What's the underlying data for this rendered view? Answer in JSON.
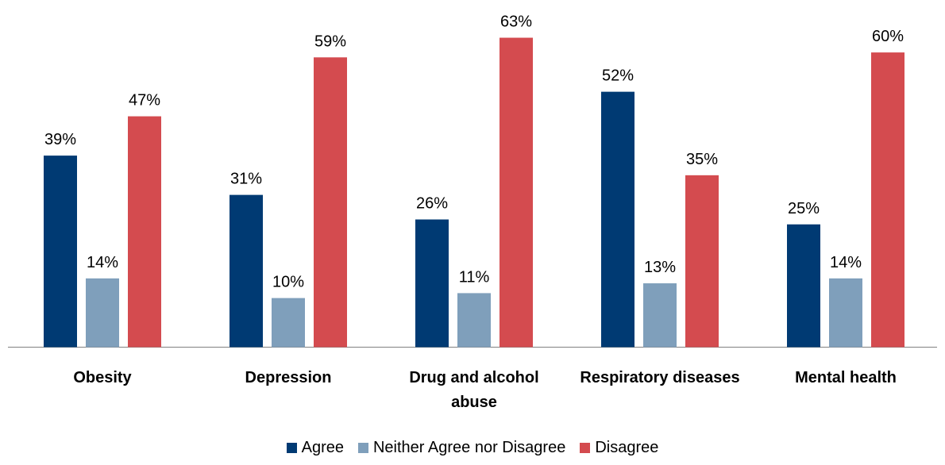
{
  "chart_data": {
    "type": "bar",
    "title": "",
    "xlabel": "",
    "ylabel": "",
    "ylim": [
      0,
      70
    ],
    "grid": false,
    "legend_position": "bottom",
    "categories": [
      [
        "Obesity"
      ],
      [
        "Depression"
      ],
      [
        "Drug and alcohol",
        "abuse"
      ],
      [
        "Respiratory diseases"
      ],
      [
        "Mental health"
      ]
    ],
    "series": [
      {
        "name": "Agree",
        "color": "#003a73",
        "values": [
          39,
          31,
          26,
          52,
          25
        ],
        "labels": [
          "39%",
          "31%",
          "26%",
          "52%",
          "25%"
        ]
      },
      {
        "name": "Neither Agree nor Disagree",
        "color": "#7f9fbb",
        "values": [
          14,
          10,
          11,
          13,
          14
        ],
        "labels": [
          "14%",
          "10%",
          "11%",
          "13%",
          "14%"
        ]
      },
      {
        "name": "Disagree",
        "color": "#d44b4f",
        "values": [
          47,
          59,
          63,
          35,
          60
        ],
        "labels": [
          "47%",
          "59%",
          "63%",
          "35%",
          "60%"
        ]
      }
    ]
  }
}
